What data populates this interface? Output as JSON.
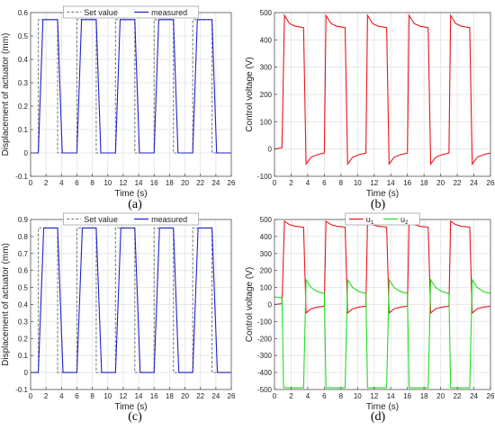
{
  "chart_data": [
    {
      "id": "a",
      "type": "line",
      "xlabel": "Time (s)",
      "ylabel": "Displacement of actuator (mm)",
      "xlim": [
        0,
        26
      ],
      "ylim": [
        -0.1,
        0.6
      ],
      "xticks": [
        0,
        2,
        4,
        6,
        8,
        10,
        12,
        14,
        16,
        18,
        20,
        22,
        24,
        26
      ],
      "yticks": [
        -0.1,
        0,
        0.1,
        0.2,
        0.3,
        0.4,
        0.5,
        0.6
      ],
      "grid": true,
      "legend": "top-center",
      "series": [
        {
          "name": "Set value",
          "color": "#7f7f7f",
          "dash": true,
          "points": [
            [
              0,
              0
            ],
            [
              1,
              0
            ],
            [
              1,
              0.57
            ],
            [
              3.5,
              0.57
            ],
            [
              3.5,
              0
            ],
            [
              6,
              0
            ],
            [
              6,
              0.57
            ],
            [
              8.5,
              0.57
            ],
            [
              8.5,
              0
            ],
            [
              11,
              0
            ],
            [
              11,
              0.57
            ],
            [
              13.5,
              0.57
            ],
            [
              13.5,
              0
            ],
            [
              16,
              0
            ],
            [
              16,
              0.57
            ],
            [
              18.5,
              0.57
            ],
            [
              18.5,
              0
            ],
            [
              21,
              0
            ],
            [
              21,
              0.57
            ],
            [
              23.5,
              0.57
            ],
            [
              23.5,
              0
            ],
            [
              26,
              0
            ]
          ]
        },
        {
          "name": "measured",
          "color": "#2222cc",
          "dash": false,
          "points": [
            [
              0,
              0
            ],
            [
              1,
              0
            ],
            [
              1.6,
              0.57
            ],
            [
              3.5,
              0.57
            ],
            [
              4.1,
              0
            ],
            [
              6,
              0
            ],
            [
              6.6,
              0.57
            ],
            [
              8.5,
              0.57
            ],
            [
              9.1,
              0
            ],
            [
              11,
              0
            ],
            [
              11.6,
              0.57
            ],
            [
              13.5,
              0.57
            ],
            [
              14.1,
              0
            ],
            [
              16,
              0
            ],
            [
              16.6,
              0.57
            ],
            [
              18.5,
              0.57
            ],
            [
              19.1,
              0
            ],
            [
              21,
              0
            ],
            [
              21.6,
              0.57
            ],
            [
              23.5,
              0.57
            ],
            [
              24.1,
              0
            ],
            [
              26,
              0
            ]
          ]
        }
      ]
    },
    {
      "id": "b",
      "type": "line",
      "xlabel": "Time (s)",
      "ylabel": "Control voltage (V)",
      "xlim": [
        0,
        26
      ],
      "ylim": [
        -100,
        500
      ],
      "xticks": [
        0,
        2,
        4,
        6,
        8,
        10,
        12,
        14,
        16,
        18,
        20,
        22,
        24,
        26
      ],
      "yticks": [
        -100,
        0,
        100,
        200,
        300,
        400,
        500
      ],
      "grid": true,
      "legend": "none",
      "series": [
        {
          "name": "",
          "color": "#e8151b",
          "dash": false,
          "points": [
            [
              0,
              0
            ],
            [
              0.9,
              5
            ],
            [
              1.2,
              490
            ],
            [
              1.8,
              460
            ],
            [
              2.5,
              450
            ],
            [
              3.5,
              445
            ],
            [
              3.8,
              -55
            ],
            [
              4.4,
              -30
            ],
            [
              5.2,
              -20
            ],
            [
              6,
              -15
            ],
            [
              6.2,
              490
            ],
            [
              6.8,
              460
            ],
            [
              7.5,
              450
            ],
            [
              8.5,
              445
            ],
            [
              8.8,
              -55
            ],
            [
              9.4,
              -30
            ],
            [
              10.2,
              -20
            ],
            [
              11,
              -15
            ],
            [
              11.2,
              490
            ],
            [
              11.8,
              460
            ],
            [
              12.5,
              450
            ],
            [
              13.5,
              445
            ],
            [
              13.8,
              -55
            ],
            [
              14.4,
              -30
            ],
            [
              15.2,
              -20
            ],
            [
              16,
              -15
            ],
            [
              16.2,
              490
            ],
            [
              16.8,
              460
            ],
            [
              17.5,
              450
            ],
            [
              18.5,
              445
            ],
            [
              18.8,
              -55
            ],
            [
              19.4,
              -30
            ],
            [
              20.2,
              -20
            ],
            [
              21,
              -15
            ],
            [
              21.2,
              490
            ],
            [
              21.8,
              460
            ],
            [
              22.5,
              450
            ],
            [
              23.5,
              445
            ],
            [
              23.8,
              -55
            ],
            [
              24.4,
              -30
            ],
            [
              25.2,
              -20
            ],
            [
              26,
              -15
            ]
          ]
        }
      ]
    },
    {
      "id": "c",
      "type": "line",
      "xlabel": "Time (s)",
      "ylabel": "Displacement of actuator (mm)",
      "xlim": [
        0,
        26
      ],
      "ylim": [
        -0.1,
        0.9
      ],
      "xticks": [
        0,
        2,
        4,
        6,
        8,
        10,
        12,
        14,
        16,
        18,
        20,
        22,
        24,
        26
      ],
      "yticks": [
        -0.1,
        0,
        0.1,
        0.2,
        0.3,
        0.4,
        0.5,
        0.6,
        0.7,
        0.8,
        0.9
      ],
      "grid": true,
      "legend": "top-center",
      "series": [
        {
          "name": "Set value",
          "color": "#7f7f7f",
          "dash": true,
          "points": [
            [
              0,
              0
            ],
            [
              1,
              0
            ],
            [
              1,
              0.85
            ],
            [
              3.5,
              0.85
            ],
            [
              3.5,
              0
            ],
            [
              6,
              0
            ],
            [
              6,
              0.85
            ],
            [
              8.5,
              0.85
            ],
            [
              8.5,
              0
            ],
            [
              11,
              0
            ],
            [
              11,
              0.85
            ],
            [
              13.5,
              0.85
            ],
            [
              13.5,
              0
            ],
            [
              16,
              0
            ],
            [
              16,
              0.85
            ],
            [
              18.5,
              0.85
            ],
            [
              18.5,
              0
            ],
            [
              21,
              0
            ],
            [
              21,
              0.85
            ],
            [
              23.5,
              0.85
            ],
            [
              23.5,
              0
            ],
            [
              26,
              0
            ]
          ]
        },
        {
          "name": "measured",
          "color": "#2222cc",
          "dash": false,
          "points": [
            [
              0,
              0
            ],
            [
              1,
              0
            ],
            [
              1.7,
              0.85
            ],
            [
              3.5,
              0.85
            ],
            [
              4.2,
              0
            ],
            [
              6,
              0
            ],
            [
              6.7,
              0.85
            ],
            [
              8.5,
              0.85
            ],
            [
              9.2,
              0
            ],
            [
              11,
              0
            ],
            [
              11.7,
              0.85
            ],
            [
              13.5,
              0.85
            ],
            [
              14.2,
              0
            ],
            [
              16,
              0
            ],
            [
              16.7,
              0.85
            ],
            [
              18.5,
              0.85
            ],
            [
              19.2,
              0
            ],
            [
              21,
              0
            ],
            [
              21.7,
              0.85
            ],
            [
              23.5,
              0.85
            ],
            [
              24.2,
              0
            ],
            [
              26,
              0
            ]
          ]
        }
      ]
    },
    {
      "id": "d",
      "type": "line",
      "xlabel": "Time (s)",
      "ylabel": "Control voltage (V)",
      "xlim": [
        0,
        26
      ],
      "ylim": [
        -500,
        500
      ],
      "xticks": [
        0,
        2,
        4,
        6,
        8,
        10,
        12,
        14,
        16,
        18,
        20,
        22,
        24,
        26
      ],
      "yticks": [
        -500,
        -400,
        -300,
        -200,
        -100,
        0,
        100,
        200,
        300,
        400,
        500
      ],
      "grid": true,
      "legend": "top-center",
      "series": [
        {
          "name": "u",
          "sub": "1",
          "color": "#e8151b",
          "dash": false,
          "points": [
            [
              0,
              0
            ],
            [
              0.9,
              5
            ],
            [
              1.2,
              490
            ],
            [
              1.8,
              470
            ],
            [
              2.5,
              460
            ],
            [
              3.5,
              455
            ],
            [
              3.8,
              -50
            ],
            [
              4.4,
              -25
            ],
            [
              5.2,
              -15
            ],
            [
              6,
              -10
            ],
            [
              6.2,
              490
            ],
            [
              6.8,
              470
            ],
            [
              7.5,
              460
            ],
            [
              8.5,
              455
            ],
            [
              8.8,
              -50
            ],
            [
              9.4,
              -25
            ],
            [
              10.2,
              -15
            ],
            [
              11,
              -10
            ],
            [
              11.2,
              490
            ],
            [
              11.8,
              470
            ],
            [
              12.5,
              460
            ],
            [
              13.5,
              455
            ],
            [
              13.8,
              -50
            ],
            [
              14.4,
              -25
            ],
            [
              15.2,
              -15
            ],
            [
              16,
              -10
            ],
            [
              16.2,
              490
            ],
            [
              16.8,
              470
            ],
            [
              17.5,
              460
            ],
            [
              18.5,
              455
            ],
            [
              18.8,
              -50
            ],
            [
              19.4,
              -25
            ],
            [
              20.2,
              -15
            ],
            [
              21,
              -10
            ],
            [
              21.2,
              490
            ],
            [
              21.8,
              470
            ],
            [
              22.5,
              460
            ],
            [
              23.5,
              455
            ],
            [
              23.8,
              -50
            ],
            [
              24.4,
              -25
            ],
            [
              25.2,
              -15
            ],
            [
              26,
              -10
            ]
          ]
        },
        {
          "name": "u",
          "sub": "2",
          "color": "#22dd22",
          "dash": false,
          "points": [
            [
              0,
              45
            ],
            [
              0.9,
              40
            ],
            [
              1.1,
              -490
            ],
            [
              3.5,
              -490
            ],
            [
              3.8,
              145
            ],
            [
              4.4,
              100
            ],
            [
              5.2,
              75
            ],
            [
              6,
              65
            ],
            [
              6.2,
              -490
            ],
            [
              8.5,
              -490
            ],
            [
              8.8,
              145
            ],
            [
              9.4,
              100
            ],
            [
              10.2,
              75
            ],
            [
              11,
              65
            ],
            [
              11.2,
              -490
            ],
            [
              13.5,
              -490
            ],
            [
              13.8,
              145
            ],
            [
              14.4,
              100
            ],
            [
              15.2,
              75
            ],
            [
              16,
              65
            ],
            [
              16.2,
              -490
            ],
            [
              18.5,
              -490
            ],
            [
              18.8,
              145
            ],
            [
              19.4,
              100
            ],
            [
              20.2,
              75
            ],
            [
              21,
              65
            ],
            [
              21.2,
              -490
            ],
            [
              23.5,
              -490
            ],
            [
              23.8,
              145
            ],
            [
              24.4,
              100
            ],
            [
              25.2,
              75
            ],
            [
              26,
              65
            ]
          ]
        }
      ]
    }
  ],
  "captions": [
    {
      "id": "a",
      "text": "(a)"
    },
    {
      "id": "b",
      "text": "(b)"
    },
    {
      "id": "c",
      "text": "(c)"
    },
    {
      "id": "d",
      "text": "(d)"
    }
  ]
}
